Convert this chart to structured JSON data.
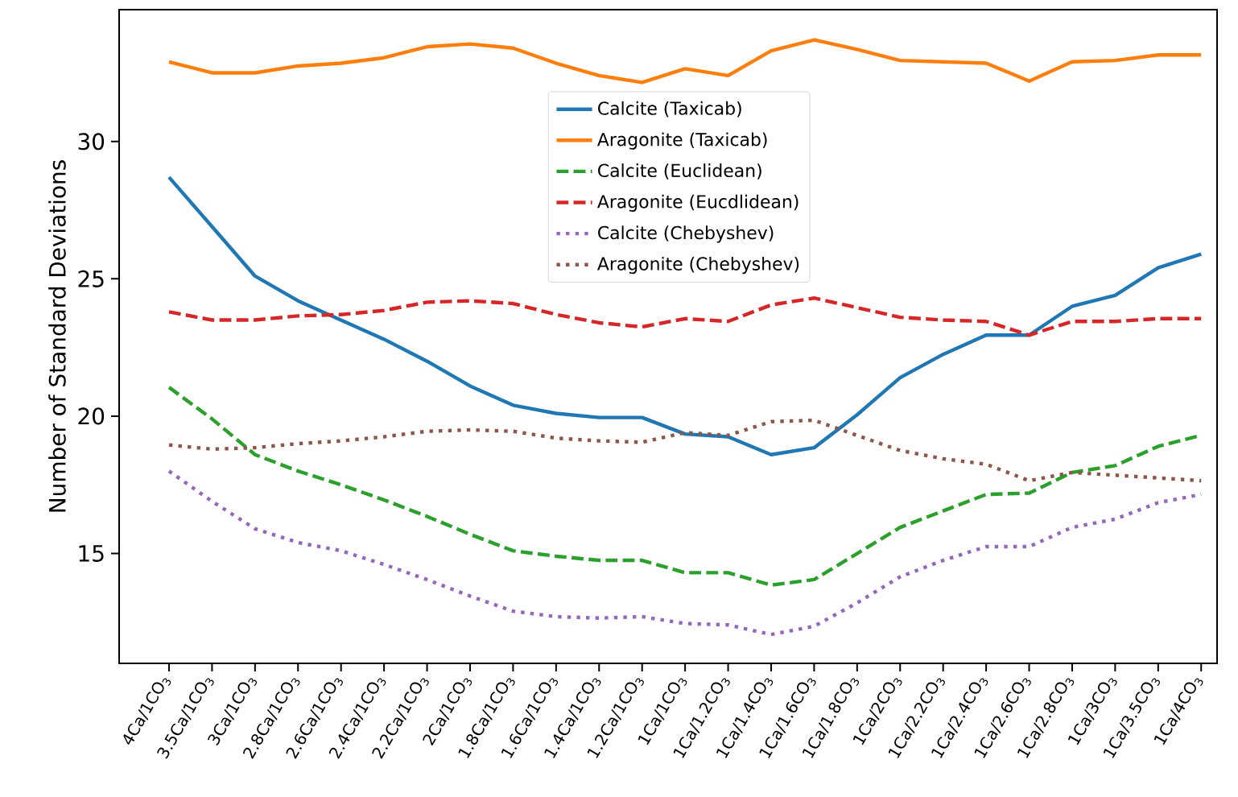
{
  "chart_data": {
    "type": "line",
    "ylabel": "Number of Standard Deviations",
    "categories": [
      "4Ca/1CO$_{3}$",
      "3.5Ca/1CO$_{3}$",
      "3Ca/1CO$_{3}$",
      "2.8Ca/1CO$_{3}$",
      "2.6Ca/1CO$_{3}$",
      "2.4Ca/1CO$_{3}$",
      "2.2Ca/1CO$_{3}$",
      "2Ca/1CO$_{3}$",
      "1.8Ca/1CO$_{3}$",
      "1.6Ca/1CO$_{3}$",
      "1.4Ca/1CO$_{3}$",
      "1.2Ca/1CO$_{3}$",
      "1Ca/1CO$_{3}$",
      "1Ca/1.2CO$_{3}$",
      "1Ca/1.4CO$_{3}$",
      "1Ca/1.6CO$_{3}$",
      "1Ca/1.8CO$_{3}$",
      "1Ca/2CO$_{3}$",
      "1Ca/2.2CO$_{3}$",
      "1Ca/2.4CO$_{3}$",
      "1Ca/2.6CO$_{3}$",
      "1Ca/2.8CO$_{3}$",
      "1Ca/3CO$_{3}$",
      "1Ca/3.5CO$_{3}$",
      "1Ca/4CO$_{3}$"
    ],
    "series": [
      {
        "name": "Calcite (Taxicab)",
        "color": "#1f77b4",
        "line_style": "solid",
        "values": [
          28.7,
          26.9,
          25.1,
          24.2,
          23.5,
          22.8,
          22.0,
          21.1,
          20.4,
          20.1,
          19.95,
          19.95,
          19.35,
          19.25,
          18.6,
          18.85,
          20.05,
          21.4,
          22.25,
          22.95,
          22.95,
          24.0,
          24.4,
          25.4,
          25.9
        ]
      },
      {
        "name": "Aragonite (Taxicab)",
        "color": "#ff7f0e",
        "line_style": "solid",
        "values": [
          32.9,
          32.5,
          32.5,
          32.75,
          32.85,
          33.05,
          33.45,
          33.55,
          33.4,
          32.85,
          32.4,
          32.15,
          32.65,
          32.4,
          33.3,
          33.7,
          33.35,
          32.95,
          32.9,
          32.85,
          32.2,
          32.9,
          32.95,
          33.15,
          33.15
        ]
      },
      {
        "name": "Calcite (Euclidean)",
        "color": "#2ca02c",
        "line_style": "dashed",
        "values": [
          21.05,
          19.9,
          18.6,
          18.0,
          17.5,
          16.95,
          16.35,
          15.7,
          15.1,
          14.9,
          14.75,
          14.75,
          14.3,
          14.3,
          13.85,
          14.05,
          15.0,
          15.95,
          16.55,
          17.15,
          17.2,
          17.95,
          18.2,
          18.9,
          19.3
        ]
      },
      {
        "name": "Aragonite (Eucdlidean)",
        "color": "#d62728",
        "line_style": "dashed",
        "values": [
          23.8,
          23.5,
          23.5,
          23.65,
          23.7,
          23.85,
          24.15,
          24.2,
          24.1,
          23.7,
          23.4,
          23.25,
          23.55,
          23.45,
          24.05,
          24.3,
          23.95,
          23.6,
          23.5,
          23.45,
          22.95,
          23.45,
          23.45,
          23.55,
          23.55
        ]
      },
      {
        "name": "Calcite (Chebyshev)",
        "color": "#9467bd",
        "line_style": "dotted",
        "values": [
          18.0,
          16.9,
          15.9,
          15.4,
          15.1,
          14.6,
          14.05,
          13.45,
          12.9,
          12.7,
          12.65,
          12.7,
          12.45,
          12.4,
          12.05,
          12.35,
          13.2,
          14.15,
          14.75,
          15.25,
          15.25,
          15.95,
          16.25,
          16.85,
          17.15
        ]
      },
      {
        "name": "Aragonite (Chebyshev)",
        "color": "#8c564b",
        "line_style": "dotted",
        "values": [
          18.95,
          18.8,
          18.85,
          19.0,
          19.1,
          19.25,
          19.45,
          19.5,
          19.45,
          19.2,
          19.1,
          19.05,
          19.4,
          19.3,
          19.8,
          19.85,
          19.3,
          18.75,
          18.45,
          18.25,
          17.65,
          17.95,
          17.85,
          17.75,
          17.65
        ]
      }
    ],
    "ylim": [
      11.0,
      34.8
    ],
    "yticks": [
      15,
      20,
      25,
      30
    ],
    "grid": false,
    "legend": "top",
    "marker": "none"
  }
}
